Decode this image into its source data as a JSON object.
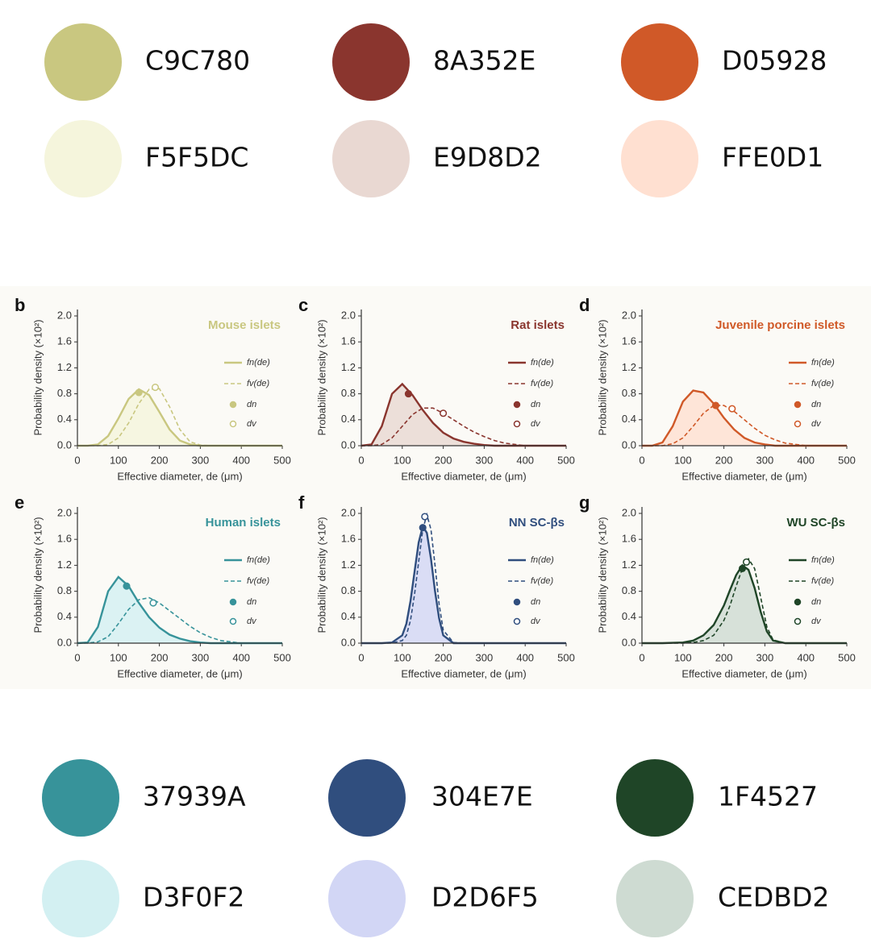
{
  "palette_top": [
    {
      "label": "C9C780",
      "color": "#C9C780"
    },
    {
      "label": "8A352E",
      "color": "#8A352E"
    },
    {
      "label": "D05928",
      "color": "#D05928"
    },
    {
      "label": "F5F5DC",
      "color": "#F5F5DC"
    },
    {
      "label": "E9D8D2",
      "color": "#E9D8D2"
    },
    {
      "label": "FFE0D1",
      "color": "#FFE0D1"
    }
  ],
  "palette_bottom": [
    {
      "label": "37939A",
      "color": "#37939A"
    },
    {
      "label": "304E7E",
      "color": "#304E7E"
    },
    {
      "label": "1F4527",
      "color": "#1F4527"
    },
    {
      "label": "D3F0F2",
      "color": "#D3F0F2"
    },
    {
      "label": "D2D6F5",
      "color": "#D2D6F5"
    },
    {
      "label": "CEDBD2",
      "color": "#CEDBD2"
    }
  ],
  "chart_data": [
    {
      "type": "line",
      "panel": "b",
      "title": "Mouse islets",
      "title_color": "#C9C780",
      "xlabel": "Effective diameter, de (μm)",
      "ylabel": "Probability density (×10²)",
      "x": [
        0,
        25,
        50,
        75,
        100,
        125,
        150,
        175,
        200,
        225,
        250,
        275,
        300,
        325,
        350,
        375,
        400,
        425,
        450,
        475,
        500
      ],
      "xlim": [
        0,
        500
      ],
      "ylim": [
        0,
        2.1
      ],
      "xticks": [
        0,
        100,
        200,
        300,
        400,
        500
      ],
      "yticks": [
        {
          "value": 0,
          "label": "0.0"
        },
        {
          "value": 0.4,
          "label": "0.4"
        },
        {
          "value": 0.8,
          "label": "0.8"
        },
        {
          "value": 1.2,
          "label": "1.2"
        },
        {
          "value": 1.6,
          "label": "1.6"
        },
        {
          "value": 2,
          "label": "2.0"
        }
      ],
      "series": [
        {
          "name": "fn(de)",
          "color": "#C9C780",
          "style": "solid",
          "fill": "#F5F5DC",
          "values": [
            0,
            0,
            0.02,
            0.15,
            0.42,
            0.72,
            0.87,
            0.78,
            0.52,
            0.25,
            0.08,
            0.02,
            0,
            0,
            0,
            0,
            0,
            0,
            0,
            0,
            0
          ]
        },
        {
          "name": "fv(de)",
          "color": "#C9C780",
          "style": "dashed",
          "values": [
            0,
            0,
            0,
            0.02,
            0.12,
            0.35,
            0.65,
            0.87,
            0.88,
            0.6,
            0.25,
            0.06,
            0.01,
            0,
            0,
            0,
            0,
            0,
            0,
            0,
            0
          ]
        }
      ],
      "points": [
        {
          "name": "dn",
          "x": 150,
          "y": 0.82,
          "marker": "filled"
        },
        {
          "name": "dv",
          "x": 190,
          "y": 0.9,
          "marker": "open"
        }
      ]
    },
    {
      "type": "line",
      "panel": "c",
      "title": "Rat islets",
      "title_color": "#8A352E",
      "xlabel": "Effective diameter, de (μm)",
      "ylabel": "Probability density (×10²)",
      "x": [
        0,
        25,
        50,
        75,
        100,
        125,
        150,
        175,
        200,
        225,
        250,
        275,
        300,
        325,
        350,
        375,
        400,
        425,
        450,
        475,
        500
      ],
      "xlim": [
        0,
        500
      ],
      "ylim": [
        0,
        2.1
      ],
      "xticks": [
        0,
        100,
        200,
        300,
        400,
        500
      ],
      "yticks": [
        {
          "value": 0,
          "label": "0.0"
        },
        {
          "value": 0.4,
          "label": "0.4"
        },
        {
          "value": 0.8,
          "label": "0.8"
        },
        {
          "value": 1.2,
          "label": "1.2"
        },
        {
          "value": 1.6,
          "label": "1.6"
        },
        {
          "value": 2,
          "label": "2.0"
        }
      ],
      "series": [
        {
          "name": "fn(de)",
          "color": "#8A352E",
          "style": "solid",
          "fill": "#E9D8D2",
          "values": [
            0,
            0.02,
            0.3,
            0.8,
            0.95,
            0.78,
            0.55,
            0.35,
            0.2,
            0.11,
            0.06,
            0.03,
            0.01,
            0,
            0,
            0,
            0,
            0,
            0,
            0,
            0
          ]
        },
        {
          "name": "fv(de)",
          "color": "#8A352E",
          "style": "dashed",
          "values": [
            0,
            0,
            0.02,
            0.12,
            0.3,
            0.48,
            0.58,
            0.58,
            0.5,
            0.4,
            0.3,
            0.21,
            0.14,
            0.08,
            0.04,
            0.02,
            0,
            0,
            0,
            0,
            0
          ]
        }
      ],
      "points": [
        {
          "name": "dn",
          "x": 115,
          "y": 0.8,
          "marker": "filled"
        },
        {
          "name": "dv",
          "x": 200,
          "y": 0.5,
          "marker": "open"
        }
      ]
    },
    {
      "type": "line",
      "panel": "d",
      "title": "Juvenile porcine islets",
      "title_color": "#D05928",
      "xlabel": "Effective diameter, de (μm)",
      "ylabel": "Probability density (×10²)",
      "x": [
        0,
        25,
        50,
        75,
        100,
        125,
        150,
        175,
        200,
        225,
        250,
        275,
        300,
        325,
        350,
        375,
        400,
        425,
        450,
        475,
        500
      ],
      "xlim": [
        0,
        500
      ],
      "ylim": [
        0,
        2.1
      ],
      "xticks": [
        0,
        100,
        200,
        300,
        400,
        500
      ],
      "yticks": [
        {
          "value": 0,
          "label": "0.0"
        },
        {
          "value": 0.4,
          "label": "0.4"
        },
        {
          "value": 0.8,
          "label": "0.8"
        },
        {
          "value": 1.2,
          "label": "1.2"
        },
        {
          "value": 1.6,
          "label": "1.6"
        },
        {
          "value": 2,
          "label": "2.0"
        }
      ],
      "series": [
        {
          "name": "fn(de)",
          "color": "#D05928",
          "style": "solid",
          "fill": "#FFE0D1",
          "values": [
            0,
            0,
            0.05,
            0.3,
            0.68,
            0.85,
            0.82,
            0.65,
            0.43,
            0.25,
            0.12,
            0.05,
            0.02,
            0,
            0,
            0,
            0,
            0,
            0,
            0,
            0
          ]
        },
        {
          "name": "fv(de)",
          "color": "#D05928",
          "style": "dashed",
          "values": [
            0,
            0,
            0,
            0.03,
            0.12,
            0.3,
            0.5,
            0.62,
            0.62,
            0.53,
            0.4,
            0.27,
            0.16,
            0.09,
            0.04,
            0.02,
            0,
            0,
            0,
            0,
            0
          ]
        }
      ],
      "points": [
        {
          "name": "dn",
          "x": 180,
          "y": 0.62,
          "marker": "filled"
        },
        {
          "name": "dv",
          "x": 220,
          "y": 0.57,
          "marker": "open"
        }
      ]
    },
    {
      "type": "line",
      "panel": "e",
      "title": "Human islets",
      "title_color": "#37939A",
      "xlabel": "Effective diameter, de (μm)",
      "ylabel": "Probability density (×10²)",
      "x": [
        0,
        25,
        50,
        75,
        100,
        125,
        150,
        175,
        200,
        225,
        250,
        275,
        300,
        325,
        350,
        375,
        400,
        425,
        450,
        475,
        500
      ],
      "xlim": [
        0,
        500
      ],
      "ylim": [
        0,
        2.1
      ],
      "xticks": [
        0,
        100,
        200,
        300,
        400,
        500
      ],
      "yticks": [
        {
          "value": 0,
          "label": "0.0"
        },
        {
          "value": 0.4,
          "label": "0.4"
        },
        {
          "value": 0.8,
          "label": "0.8"
        },
        {
          "value": 1.2,
          "label": "1.2"
        },
        {
          "value": 1.6,
          "label": "1.6"
        },
        {
          "value": 2,
          "label": "2.0"
        }
      ],
      "series": [
        {
          "name": "fn(de)",
          "color": "#37939A",
          "style": "solid",
          "fill": "#D3F0F2",
          "values": [
            0,
            0.01,
            0.25,
            0.8,
            1.02,
            0.88,
            0.62,
            0.4,
            0.24,
            0.13,
            0.07,
            0.03,
            0.01,
            0,
            0,
            0,
            0,
            0,
            0,
            0,
            0
          ]
        },
        {
          "name": "fv(de)",
          "color": "#37939A",
          "style": "dashed",
          "values": [
            0,
            0,
            0.02,
            0.1,
            0.3,
            0.52,
            0.67,
            0.7,
            0.62,
            0.5,
            0.38,
            0.26,
            0.16,
            0.09,
            0.04,
            0.02,
            0,
            0,
            0,
            0,
            0
          ]
        }
      ],
      "points": [
        {
          "name": "dn",
          "x": 120,
          "y": 0.88,
          "marker": "filled"
        },
        {
          "name": "dv",
          "x": 185,
          "y": 0.62,
          "marker": "open"
        }
      ]
    },
    {
      "type": "line",
      "panel": "f",
      "title": "NN SC-βs",
      "title_color": "#304E7E",
      "xlabel": "Effective diameter, de (μm)",
      "ylabel": "Probability density (×10²)",
      "x": [
        0,
        50,
        75,
        100,
        110,
        120,
        130,
        140,
        150,
        160,
        170,
        180,
        190,
        200,
        225,
        250,
        300,
        400,
        500
      ],
      "xlim": [
        0,
        500
      ],
      "ylim": [
        0,
        2.1
      ],
      "xticks": [
        0,
        100,
        200,
        300,
        400,
        500
      ],
      "yticks": [
        {
          "value": 0,
          "label": "0.0"
        },
        {
          "value": 0.4,
          "label": "0.4"
        },
        {
          "value": 0.8,
          "label": "0.8"
        },
        {
          "value": 1.2,
          "label": "1.2"
        },
        {
          "value": 1.6,
          "label": "1.6"
        },
        {
          "value": 2,
          "label": "2.0"
        }
      ],
      "series": [
        {
          "name": "fn(de)",
          "color": "#304E7E",
          "style": "solid",
          "fill": "#D2D6F5",
          "values": [
            0,
            0,
            0.01,
            0.12,
            0.3,
            0.65,
            1.1,
            1.55,
            1.8,
            1.7,
            1.3,
            0.8,
            0.38,
            0.12,
            0,
            0,
            0,
            0,
            0
          ]
        },
        {
          "name": "fv(de)",
          "color": "#304E7E",
          "style": "dashed",
          "values": [
            0,
            0,
            0,
            0.04,
            0.12,
            0.35,
            0.75,
            1.25,
            1.75,
            1.98,
            1.75,
            1.2,
            0.6,
            0.2,
            0.01,
            0,
            0,
            0,
            0
          ]
        }
      ],
      "points": [
        {
          "name": "dn",
          "x": 150,
          "y": 1.78,
          "marker": "filled"
        },
        {
          "name": "dv",
          "x": 155,
          "y": 1.95,
          "marker": "open"
        }
      ]
    },
    {
      "type": "line",
      "panel": "g",
      "title": "WU SC-βs",
      "title_color": "#1F4527",
      "xlabel": "Effective diameter, de (μm)",
      "ylabel": "Probability density (×10²)",
      "x": [
        0,
        50,
        100,
        125,
        150,
        175,
        200,
        215,
        230,
        245,
        260,
        275,
        290,
        305,
        320,
        350,
        400,
        500
      ],
      "xlim": [
        0,
        500
      ],
      "ylim": [
        0,
        2.1
      ],
      "xticks": [
        0,
        100,
        200,
        300,
        400,
        500
      ],
      "yticks": [
        {
          "value": 0,
          "label": "0.0"
        },
        {
          "value": 0.4,
          "label": "0.4"
        },
        {
          "value": 0.8,
          "label": "0.8"
        },
        {
          "value": 1.2,
          "label": "1.2"
        },
        {
          "value": 1.6,
          "label": "1.6"
        },
        {
          "value": 2,
          "label": "2.0"
        }
      ],
      "series": [
        {
          "name": "fn(de)",
          "color": "#1F4527",
          "style": "solid",
          "fill": "#CEDBD2",
          "values": [
            0,
            0,
            0.01,
            0.04,
            0.12,
            0.28,
            0.58,
            0.82,
            1.05,
            1.2,
            1.13,
            0.85,
            0.48,
            0.18,
            0.04,
            0,
            0,
            0
          ]
        },
        {
          "name": "fv(de)",
          "color": "#1F4527",
          "style": "dashed",
          "values": [
            0,
            0,
            0,
            0.01,
            0.04,
            0.12,
            0.35,
            0.58,
            0.88,
            1.15,
            1.3,
            1.15,
            0.7,
            0.25,
            0.05,
            0,
            0,
            0
          ]
        }
      ],
      "points": [
        {
          "name": "dn",
          "x": 245,
          "y": 1.15,
          "marker": "filled"
        },
        {
          "name": "dv",
          "x": 255,
          "y": 1.25,
          "marker": "open"
        }
      ]
    }
  ]
}
